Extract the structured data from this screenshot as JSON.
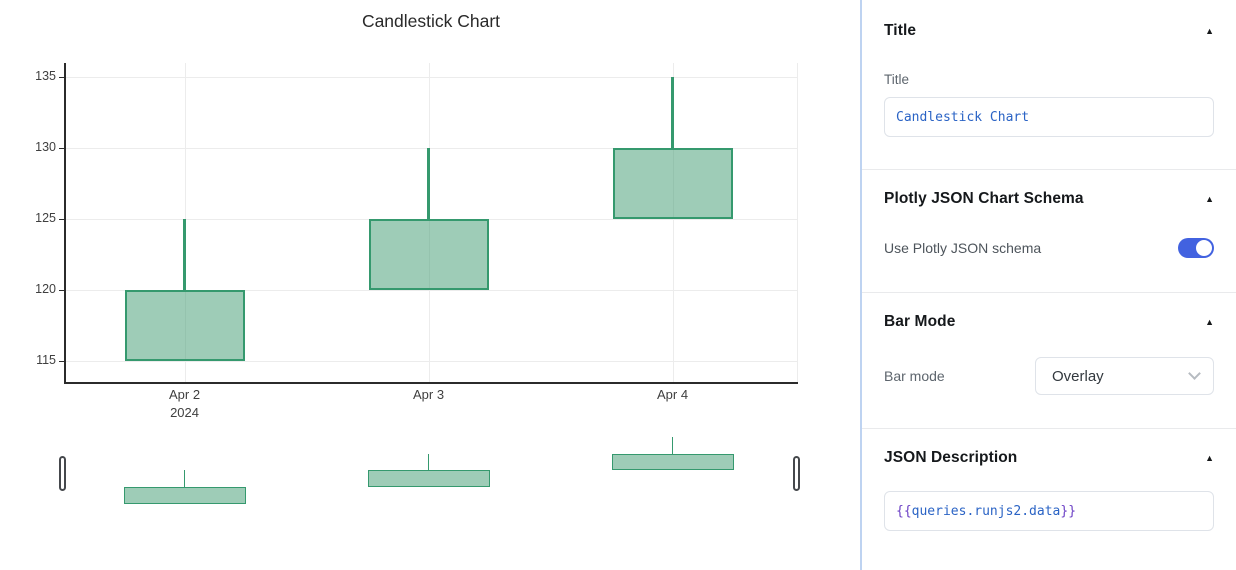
{
  "chart_data": {
    "type": "candlestick",
    "title": "Candlestick Chart",
    "x_tick_labels": [
      [
        "Apr 2",
        "2024"
      ],
      [
        "Apr 3"
      ],
      [
        "Apr 4"
      ]
    ],
    "candles": [
      {
        "date": "Apr 2 2024",
        "open": 115,
        "high": 125,
        "low": 115,
        "close": 120
      },
      {
        "date": "Apr 3 2024",
        "open": 120,
        "high": 130,
        "low": 120,
        "close": 125
      },
      {
        "date": "Apr 4 2024",
        "open": 125,
        "high": 135,
        "low": 125,
        "close": 130
      }
    ],
    "yticks": [
      115,
      120,
      125,
      130,
      135
    ],
    "ylim": [
      113.5,
      136
    ],
    "grid": true,
    "legend": "none",
    "rangeslider": true
  },
  "colors": {
    "candle_line": "#35996e",
    "candle_fill": "rgba(61,153,112,0.5)",
    "toggle_on_blue": "#4262e0",
    "code_blue": "#2a63c5",
    "code_purple": "#6b3fc5",
    "panel_border_blue": "#bed3f1"
  },
  "icons": {
    "collapse": "▲"
  },
  "panel": {
    "title_section": {
      "header": "Title",
      "field_label": "Title",
      "field_value": "Candlestick Chart"
    },
    "schema_section": {
      "header": "Plotly JSON Chart Schema",
      "toggle_label": "Use Plotly JSON schema",
      "toggle_state": "on"
    },
    "bar_mode_section": {
      "header": "Bar Mode",
      "field_label": "Bar mode",
      "selected_option": "Overlay"
    },
    "json_section": {
      "header": "JSON Description",
      "value_open": "{{",
      "value_path": "queries.runjs2.data",
      "value_close": "}}"
    }
  }
}
